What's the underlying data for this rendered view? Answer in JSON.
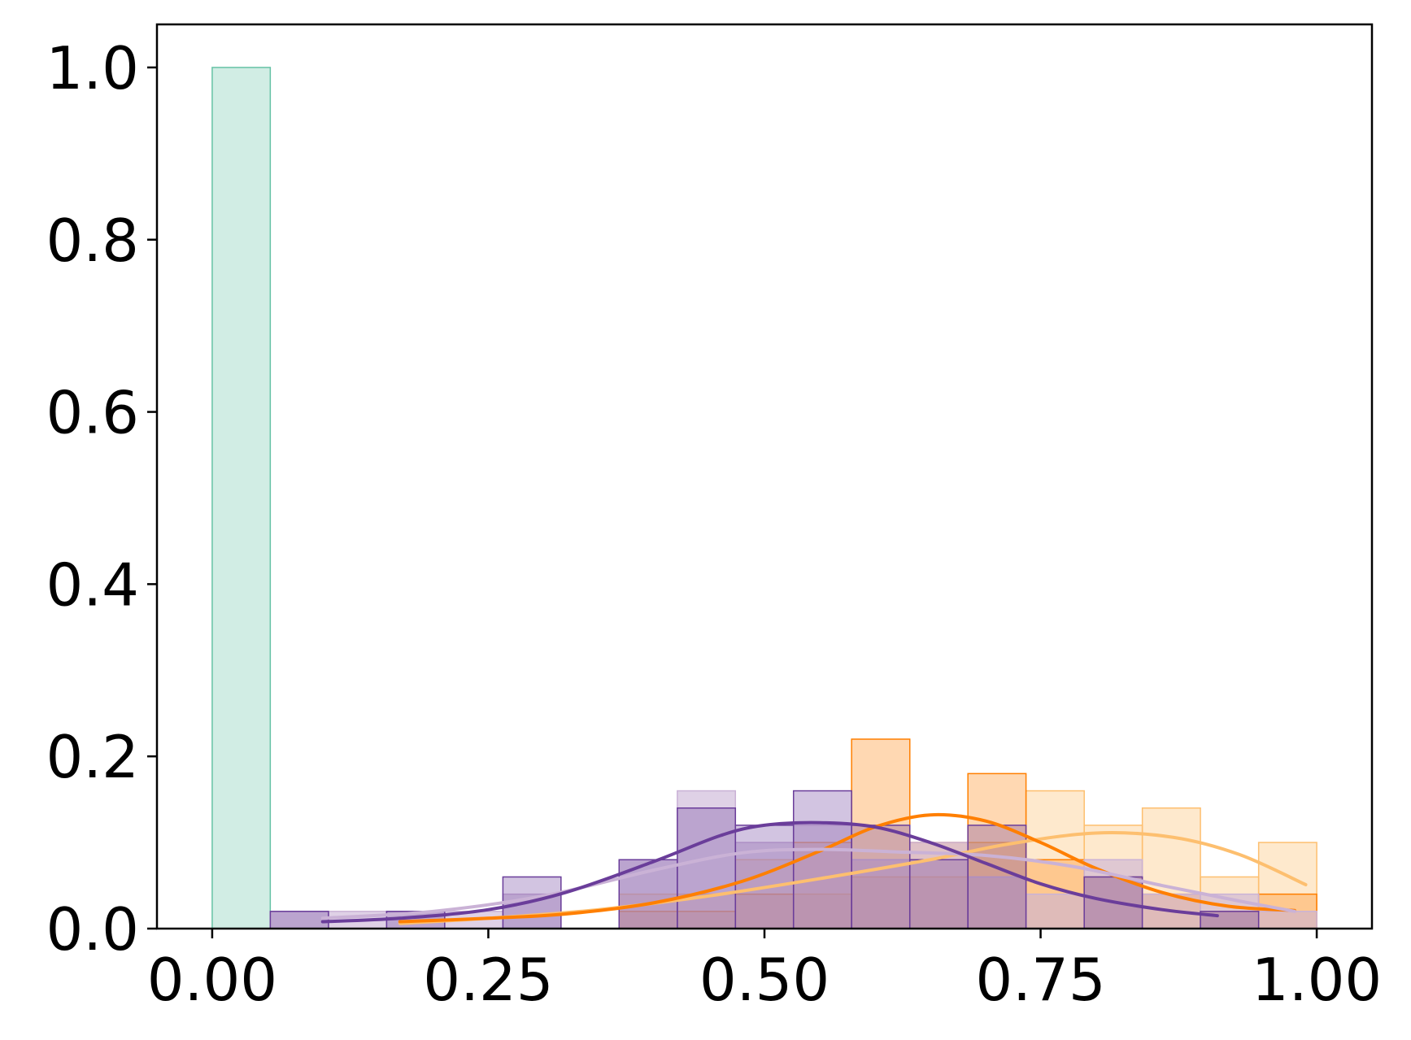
{
  "chart_data": {
    "type": "histogram",
    "xlim": [
      -0.05,
      1.05
    ],
    "ylim": [
      0,
      1.05
    ],
    "x_ticks": [
      0.0,
      0.25,
      0.5,
      0.75,
      1.0
    ],
    "x_tick_labels": [
      "0.00",
      "0.25",
      "0.50",
      "0.75",
      "1.00"
    ],
    "y_ticks": [
      0.0,
      0.2,
      0.4,
      0.6,
      0.8,
      1.0
    ],
    "y_tick_labels": [
      "0.0",
      "0.2",
      "0.4",
      "0.6",
      "0.8",
      "1.0"
    ],
    "grid": false,
    "legend": "none",
    "series": [
      {
        "color": "#66c2a5",
        "fill_opacity": 0.3,
        "bins": [
          {
            "x0": 0.0,
            "x1": 0.0526,
            "value": 1.0
          }
        ]
      },
      {
        "color": "#fdbf6f",
        "fill_opacity": 0.35,
        "bins": [
          {
            "x0": 0.3684,
            "x1": 0.4211,
            "value": 0.04
          },
          {
            "x0": 0.4211,
            "x1": 0.4737,
            "value": 0.04
          },
          {
            "x0": 0.4737,
            "x1": 0.5263,
            "value": 0.08
          },
          {
            "x0": 0.5263,
            "x1": 0.5789,
            "value": 0.04
          },
          {
            "x0": 0.5789,
            "x1": 0.6316,
            "value": 0.06
          },
          {
            "x0": 0.6316,
            "x1": 0.6842,
            "value": 0.06
          },
          {
            "x0": 0.6842,
            "x1": 0.7368,
            "value": 0.1
          },
          {
            "x0": 0.7368,
            "x1": 0.7895,
            "value": 0.16
          },
          {
            "x0": 0.7895,
            "x1": 0.8421,
            "value": 0.12
          },
          {
            "x0": 0.8421,
            "x1": 0.8947,
            "value": 0.14
          },
          {
            "x0": 0.8947,
            "x1": 0.9474,
            "value": 0.06
          },
          {
            "x0": 0.9474,
            "x1": 1.0,
            "value": 0.1
          }
        ],
        "kde": [
          [
            0.17,
            0.006
          ],
          [
            0.25,
            0.012
          ],
          [
            0.35,
            0.022
          ],
          [
            0.45,
            0.038
          ],
          [
            0.55,
            0.058
          ],
          [
            0.65,
            0.08
          ],
          [
            0.72,
            0.098
          ],
          [
            0.8,
            0.111
          ],
          [
            0.87,
            0.106
          ],
          [
            0.93,
            0.086
          ],
          [
            0.99,
            0.051
          ]
        ]
      },
      {
        "color": "#ff7f00",
        "fill_opacity": 0.3,
        "bins": [
          {
            "x0": 0.3684,
            "x1": 0.4211,
            "value": 0.02
          },
          {
            "x0": 0.4211,
            "x1": 0.4737,
            "value": 0.02
          },
          {
            "x0": 0.4737,
            "x1": 0.5263,
            "value": 0.04
          },
          {
            "x0": 0.5263,
            "x1": 0.5789,
            "value": 0.1
          },
          {
            "x0": 0.5789,
            "x1": 0.6316,
            "value": 0.22
          },
          {
            "x0": 0.6316,
            "x1": 0.6842,
            "value": 0.1
          },
          {
            "x0": 0.6842,
            "x1": 0.7368,
            "value": 0.18
          },
          {
            "x0": 0.7368,
            "x1": 0.7895,
            "value": 0.08
          },
          {
            "x0": 0.7895,
            "x1": 0.8421,
            "value": 0.06
          },
          {
            "x0": 0.8421,
            "x1": 0.8947,
            "value": 0.04
          },
          {
            "x0": 0.8947,
            "x1": 0.9474,
            "value": 0.02
          },
          {
            "x0": 0.9474,
            "x1": 1.0,
            "value": 0.04
          }
        ],
        "kde": [
          [
            0.17,
            0.008
          ],
          [
            0.25,
            0.012
          ],
          [
            0.32,
            0.017
          ],
          [
            0.4,
            0.03
          ],
          [
            0.48,
            0.055
          ],
          [
            0.55,
            0.09
          ],
          [
            0.6,
            0.118
          ],
          [
            0.65,
            0.132
          ],
          [
            0.7,
            0.125
          ],
          [
            0.75,
            0.1
          ],
          [
            0.8,
            0.07
          ],
          [
            0.86,
            0.042
          ],
          [
            0.92,
            0.026
          ],
          [
            0.98,
            0.021
          ]
        ]
      },
      {
        "color": "#cab2d6",
        "fill_opacity": 0.6,
        "bins": [
          {
            "x0": 0.0526,
            "x1": 0.1053,
            "value": 0.02
          },
          {
            "x0": 0.1053,
            "x1": 0.1579,
            "value": 0.02
          },
          {
            "x0": 0.1579,
            "x1": 0.2105,
            "value": 0.02
          },
          {
            "x0": 0.2105,
            "x1": 0.2632,
            "value": 0.02
          },
          {
            "x0": 0.2632,
            "x1": 0.3158,
            "value": 0.04
          },
          {
            "x0": 0.3684,
            "x1": 0.4211,
            "value": 0.08
          },
          {
            "x0": 0.4211,
            "x1": 0.4737,
            "value": 0.16
          },
          {
            "x0": 0.4737,
            "x1": 0.5263,
            "value": 0.1
          },
          {
            "x0": 0.5263,
            "x1": 0.5789,
            "value": 0.12
          },
          {
            "x0": 0.5789,
            "x1": 0.6316,
            "value": 0.08
          },
          {
            "x0": 0.6316,
            "x1": 0.6842,
            "value": 0.1
          },
          {
            "x0": 0.6842,
            "x1": 0.7368,
            "value": 0.06
          },
          {
            "x0": 0.7368,
            "x1": 0.7895,
            "value": 0.04
          },
          {
            "x0": 0.7895,
            "x1": 0.8421,
            "value": 0.08
          },
          {
            "x0": 0.8421,
            "x1": 0.8947,
            "value": 0.04
          },
          {
            "x0": 0.8947,
            "x1": 0.9474,
            "value": 0.04
          },
          {
            "x0": 0.9474,
            "x1": 1.0,
            "value": 0.02
          }
        ],
        "kde": [
          [
            0.1,
            0.012
          ],
          [
            0.2,
            0.02
          ],
          [
            0.3,
            0.038
          ],
          [
            0.4,
            0.068
          ],
          [
            0.48,
            0.088
          ],
          [
            0.55,
            0.092
          ],
          [
            0.62,
            0.089
          ],
          [
            0.7,
            0.085
          ],
          [
            0.78,
            0.072
          ],
          [
            0.86,
            0.05
          ],
          [
            0.93,
            0.032
          ],
          [
            0.98,
            0.02
          ]
        ]
      },
      {
        "color": "#6a3d9a",
        "fill_opacity": 0.3,
        "bins": [
          {
            "x0": 0.0526,
            "x1": 0.1053,
            "value": 0.02
          },
          {
            "x0": 0.1579,
            "x1": 0.2105,
            "value": 0.02
          },
          {
            "x0": 0.2632,
            "x1": 0.3158,
            "value": 0.06
          },
          {
            "x0": 0.3684,
            "x1": 0.4211,
            "value": 0.08
          },
          {
            "x0": 0.4211,
            "x1": 0.4737,
            "value": 0.14
          },
          {
            "x0": 0.4737,
            "x1": 0.5263,
            "value": 0.12
          },
          {
            "x0": 0.5263,
            "x1": 0.5789,
            "value": 0.16
          },
          {
            "x0": 0.5789,
            "x1": 0.6316,
            "value": 0.12
          },
          {
            "x0": 0.6316,
            "x1": 0.6842,
            "value": 0.08
          },
          {
            "x0": 0.6842,
            "x1": 0.7368,
            "value": 0.12
          },
          {
            "x0": 0.7895,
            "x1": 0.8421,
            "value": 0.06
          },
          {
            "x0": 0.8947,
            "x1": 0.9474,
            "value": 0.02
          }
        ],
        "kde": [
          [
            0.1,
            0.008
          ],
          [
            0.17,
            0.012
          ],
          [
            0.25,
            0.022
          ],
          [
            0.32,
            0.042
          ],
          [
            0.4,
            0.078
          ],
          [
            0.46,
            0.108
          ],
          [
            0.5,
            0.12
          ],
          [
            0.55,
            0.123
          ],
          [
            0.6,
            0.118
          ],
          [
            0.65,
            0.1
          ],
          [
            0.7,
            0.076
          ],
          [
            0.75,
            0.052
          ],
          [
            0.8,
            0.035
          ],
          [
            0.86,
            0.022
          ],
          [
            0.91,
            0.015
          ]
        ]
      }
    ]
  }
}
